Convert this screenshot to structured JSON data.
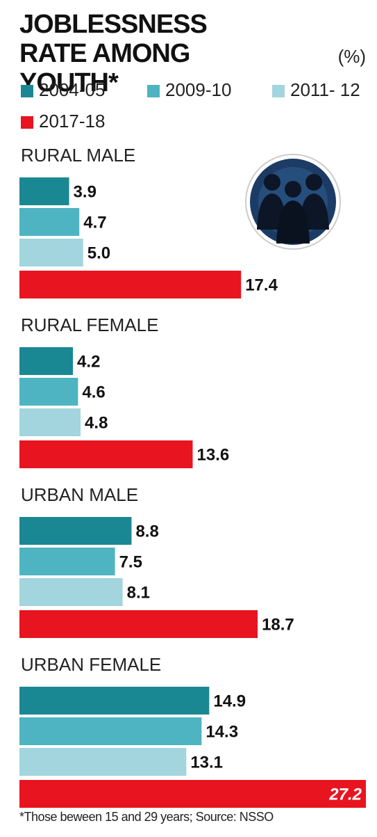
{
  "chart_data": {
    "type": "bar",
    "orientation": "horizontal",
    "title": "JOBLESSNESS RATE AMONG YOUTH*",
    "unit": "(%)",
    "footnote": "*Those beween 15 and 29 years; Source: NSSO",
    "categories": [
      "RURAL MALE",
      "RURAL FEMALE",
      "URBAN MALE",
      "URBAN FEMALE"
    ],
    "series": [
      {
        "name": "2004-05",
        "color": "#1a8893",
        "values": [
          3.9,
          4.2,
          8.8,
          14.9
        ],
        "value_labels": [
          "3.9",
          "4.2",
          "8.8",
          "14.9"
        ]
      },
      {
        "name": "2009-10",
        "color": "#4fb4c2",
        "values": [
          4.7,
          4.6,
          7.5,
          14.3
        ],
        "value_labels": [
          "4.7",
          "4.6",
          "7.5",
          "14.3"
        ]
      },
      {
        "name": "2011- 12",
        "color": "#a2d5dd",
        "values": [
          5.0,
          4.8,
          8.1,
          13.1
        ],
        "value_labels": [
          "5.0",
          "4.8",
          "8.1",
          "13.1"
        ]
      },
      {
        "name": "2017-18",
        "color": "#e8141f",
        "values": [
          17.4,
          13.6,
          18.7,
          27.2
        ],
        "value_labels": [
          "17.4",
          "13.6",
          "18.7",
          "27.2"
        ]
      }
    ]
  }
}
